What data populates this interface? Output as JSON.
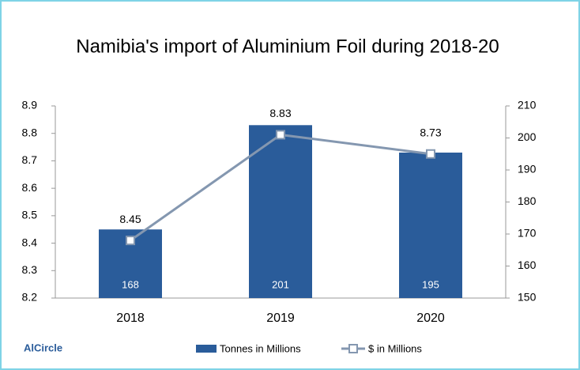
{
  "chart_data": {
    "type": "bar-line",
    "title": "Namibia's import of Aluminium Foil during 2018-20",
    "categories": [
      "2018",
      "2019",
      "2020"
    ],
    "series": [
      {
        "name": "Tonnes in Millions",
        "color": "#2a5c9a",
        "values": [
          8.45,
          8.83,
          8.73
        ]
      },
      {
        "name": "$ in Millions",
        "color": "#8497b0",
        "values": [
          168,
          201,
          195
        ],
        "axis": "y2"
      }
    ],
    "ylim": [
      8.2,
      8.9
    ],
    "yticks": [
      8.2,
      8.3,
      8.4,
      8.5,
      8.6,
      8.7,
      8.8,
      8.9
    ],
    "y2lim": [
      150,
      210
    ],
    "y2ticks": [
      150,
      160,
      170,
      180,
      190,
      200,
      210
    ],
    "legend": "bottom",
    "watermark": "AlCircle"
  }
}
